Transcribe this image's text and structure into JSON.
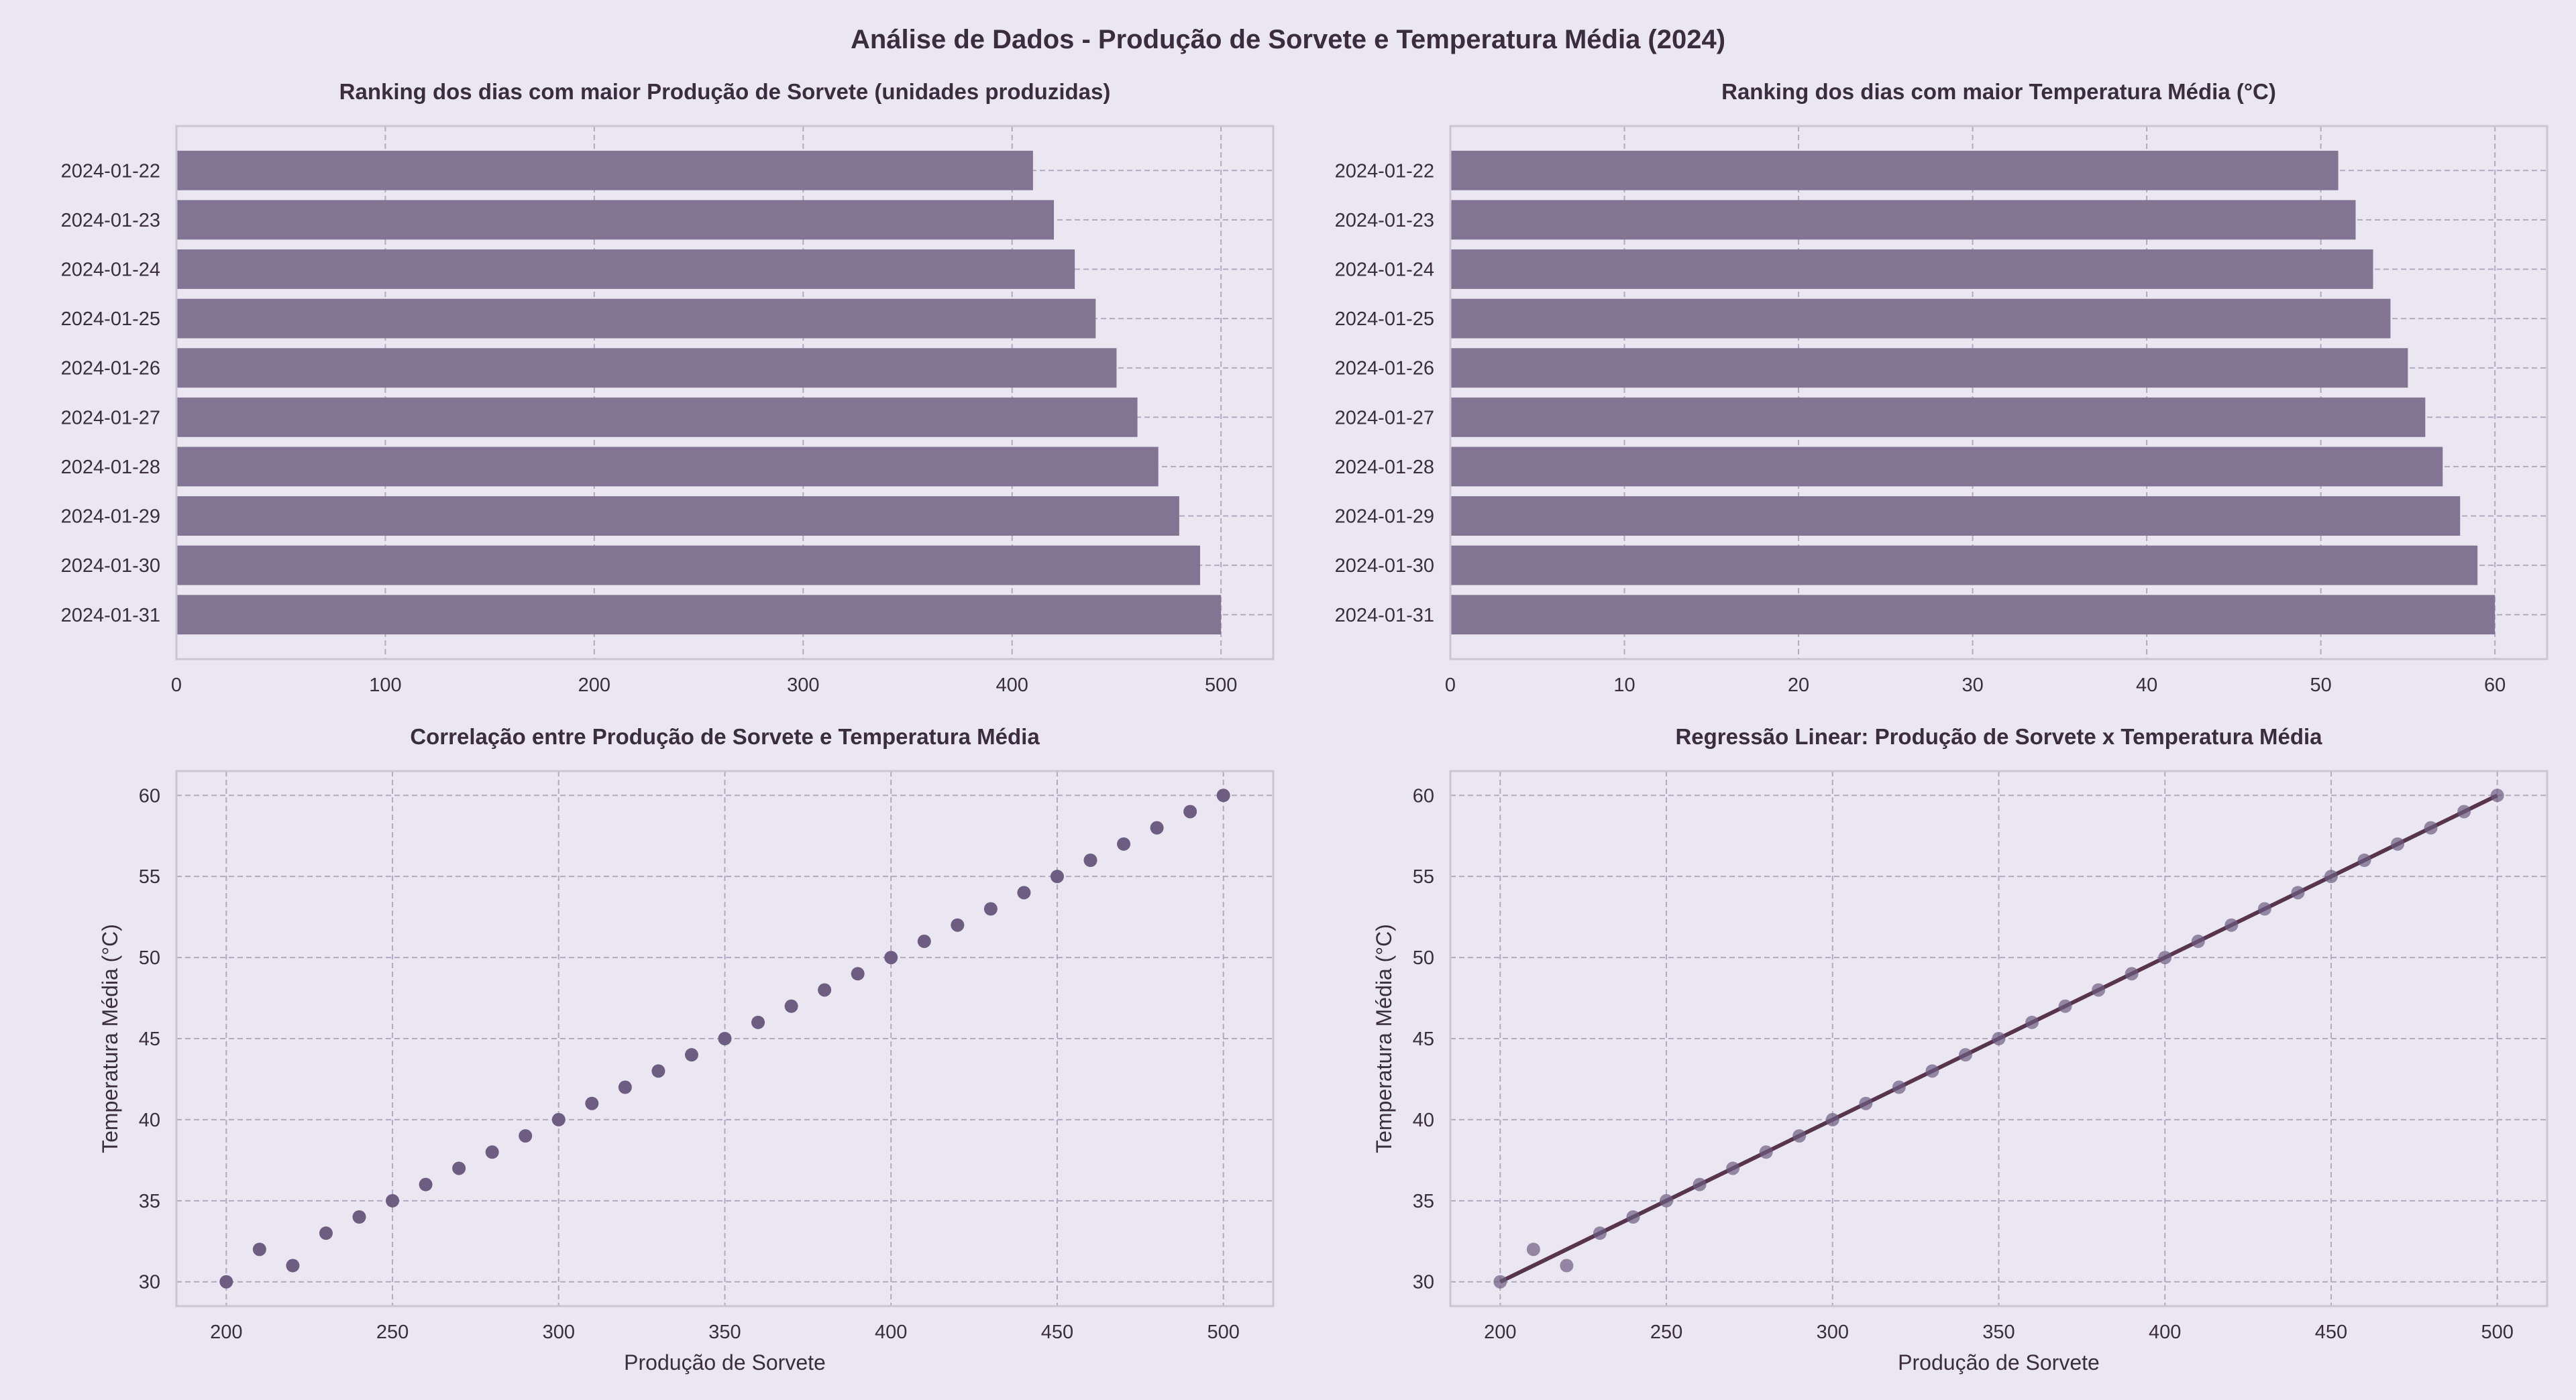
{
  "figure_title": "Análise de Dados - Produção de Sorvete e Temperatura Média (2024)",
  "colors": {
    "background": "#eae7f3",
    "bar": "#827593",
    "point": "#6d5d80",
    "regression_line": "#56354d",
    "grid": "#b2a9c1",
    "frame": "#cbc6d6",
    "text": "#3a2d3f"
  },
  "chart_data": [
    {
      "id": "production-ranking",
      "type": "bar",
      "orientation": "horizontal",
      "title": "Ranking dos dias com maior Produção de Sorvete (unidades produzidas)",
      "xlabel": "",
      "ylabel": "",
      "categories": [
        "2024-01-22",
        "2024-01-23",
        "2024-01-24",
        "2024-01-25",
        "2024-01-26",
        "2024-01-27",
        "2024-01-28",
        "2024-01-29",
        "2024-01-30",
        "2024-01-31"
      ],
      "values": [
        410,
        420,
        430,
        440,
        450,
        460,
        470,
        480,
        490,
        500
      ],
      "xlim": [
        0,
        525
      ],
      "xticks": [
        0,
        100,
        200,
        300,
        400,
        500
      ],
      "grid": true
    },
    {
      "id": "temperature-ranking",
      "type": "bar",
      "orientation": "horizontal",
      "title": "Ranking dos dias com maior Temperatura Média (°C)",
      "xlabel": "",
      "ylabel": "",
      "categories": [
        "2024-01-22",
        "2024-01-23",
        "2024-01-24",
        "2024-01-25",
        "2024-01-26",
        "2024-01-27",
        "2024-01-28",
        "2024-01-29",
        "2024-01-30",
        "2024-01-31"
      ],
      "values": [
        51,
        52,
        53,
        54,
        55,
        56,
        57,
        58,
        59,
        60
      ],
      "xlim": [
        0,
        63
      ],
      "xticks": [
        0,
        10,
        20,
        30,
        40,
        50,
        60
      ],
      "grid": true
    },
    {
      "id": "correlation-scatter",
      "type": "scatter",
      "title": "Correlação entre Produção de Sorvete e Temperatura Média",
      "xlabel": "Produção de Sorvete",
      "ylabel": "Temperatura Média (°C)",
      "x": [
        200,
        210,
        220,
        230,
        240,
        250,
        260,
        270,
        280,
        290,
        300,
        310,
        320,
        330,
        340,
        350,
        360,
        370,
        380,
        390,
        400,
        410,
        420,
        430,
        440,
        450,
        460,
        470,
        480,
        490,
        500
      ],
      "y": [
        30,
        32,
        31,
        33,
        34,
        35,
        36,
        37,
        38,
        39,
        40,
        41,
        42,
        43,
        44,
        45,
        46,
        47,
        48,
        49,
        50,
        51,
        52,
        53,
        54,
        55,
        56,
        57,
        58,
        59,
        60
      ],
      "xlim": [
        185,
        515
      ],
      "ylim": [
        28.5,
        61.5
      ],
      "xticks": [
        200,
        250,
        300,
        350,
        400,
        450,
        500
      ],
      "yticks": [
        30,
        35,
        40,
        45,
        50,
        55,
        60
      ],
      "grid": true
    },
    {
      "id": "regression",
      "type": "scatter",
      "title": "Regressão Linear: Produção de Sorvete x Temperatura Média",
      "xlabel": "Produção de Sorvete",
      "ylabel": "Temperatura Média (°C)",
      "x": [
        200,
        210,
        220,
        230,
        240,
        250,
        260,
        270,
        280,
        290,
        300,
        310,
        320,
        330,
        340,
        350,
        360,
        370,
        380,
        390,
        400,
        410,
        420,
        430,
        440,
        450,
        460,
        470,
        480,
        490,
        500
      ],
      "y": [
        30,
        32,
        31,
        33,
        34,
        35,
        36,
        37,
        38,
        39,
        40,
        41,
        42,
        43,
        44,
        45,
        46,
        47,
        48,
        49,
        50,
        51,
        52,
        53,
        54,
        55,
        56,
        57,
        58,
        59,
        60
      ],
      "regression_line": {
        "x": [
          200,
          500
        ],
        "y": [
          30,
          60
        ]
      },
      "xlim": [
        185,
        515
      ],
      "ylim": [
        28.5,
        61.5
      ],
      "xticks": [
        200,
        250,
        300,
        350,
        400,
        450,
        500
      ],
      "yticks": [
        30,
        35,
        40,
        45,
        50,
        55,
        60
      ],
      "grid": true
    }
  ]
}
